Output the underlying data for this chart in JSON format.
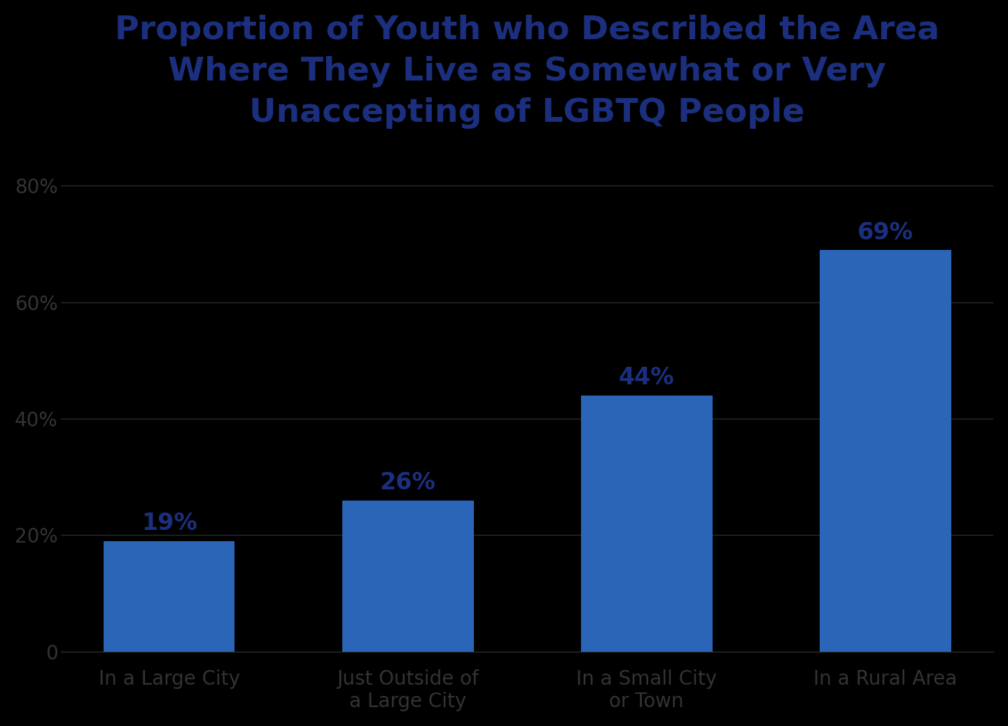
{
  "title": "Proportion of Youth who Described the Area\nWhere They Live as Somewhat or Very\nUnaccepting of LGBTQ People",
  "categories": [
    "In a Large City",
    "Just Outside of\na Large City",
    "In a Small City\nor Town",
    "In a Rural Area"
  ],
  "values": [
    19,
    26,
    44,
    69
  ],
  "bar_color": "#2B65B8",
  "title_color": "#1B2F7E",
  "label_color": "#1B2F7E",
  "tick_color": "#333333",
  "grid_color": "#2A2A2A",
  "background_color": "#000000",
  "ylim": [
    0,
    80
  ],
  "yticks": [
    0,
    20,
    40,
    60,
    80
  ],
  "title_fontsize": 34,
  "bar_label_fontsize": 24,
  "tick_fontsize": 20,
  "bar_width": 0.55
}
